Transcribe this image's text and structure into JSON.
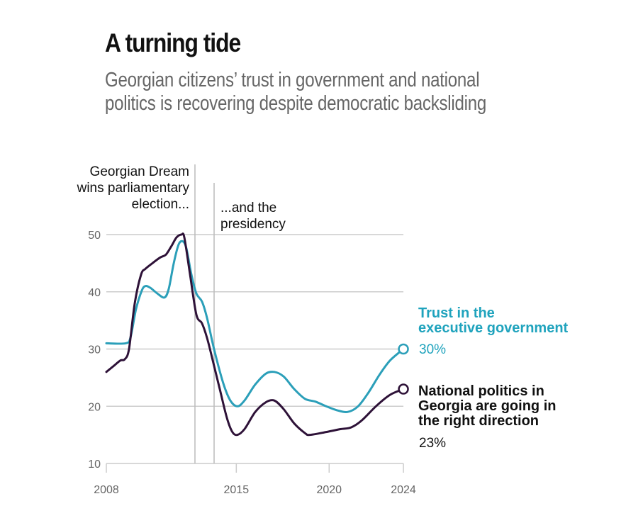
{
  "header": {
    "title": "A turning tide",
    "subtitle_line1": "Georgian citizens’ trust in government and national",
    "subtitle_line2": "politics is recovering despite democratic backsliding"
  },
  "chart_data": {
    "type": "line",
    "title": "A turning tide",
    "subtitle": "Georgian citizens’ trust in government and national politics is recovering despite democratic backsliding",
    "xlabel": "",
    "ylabel": "",
    "xlim": [
      2008,
      2024
    ],
    "ylim": [
      10,
      52
    ],
    "x_ticks": [
      2008,
      2015,
      2020,
      2024
    ],
    "x_tick_labels": [
      "2008",
      "2015",
      "2020",
      "2024"
    ],
    "y_ticks": [
      10,
      20,
      30,
      40,
      50
    ],
    "y_tick_labels": [
      "10",
      "20",
      "30",
      "40",
      "50"
    ],
    "grid": "horizontal",
    "annotations": [
      {
        "x": 2012.75,
        "lines": [
          "Georgian Dream",
          "wins parliamentary",
          "election..."
        ],
        "align": "left-of-line"
      },
      {
        "x": 2013.8,
        "lines": [
          "...and the",
          "presidency"
        ],
        "align": "right-of-line"
      }
    ],
    "series": [
      {
        "name": "Trust in the executive government",
        "label_lines": [
          "Trust in the",
          "executive government"
        ],
        "end_label": "30%",
        "color": "#2b9fb9",
        "label_color": "#1fa3bd",
        "x": [
          2008,
          2009.03,
          2009.3,
          2009.6,
          2009.91,
          2010.1,
          2010.37,
          2010.75,
          2011.13,
          2011.36,
          2011.63,
          2011.9,
          2012.13,
          2012.32,
          2012.58,
          2012.85,
          2013.15,
          2013.42,
          2013.8,
          2014.3,
          2014.68,
          2015.06,
          2015.44,
          2016.02,
          2016.59,
          2017.05,
          2017.55,
          2018.12,
          2018.7,
          2019.27,
          2019.84,
          2020.42,
          2020.99,
          2021.56,
          2022.14,
          2022.71,
          2023.28,
          2024
        ],
        "values": [
          31,
          31,
          32,
          37,
          40.2,
          41,
          40.7,
          39.7,
          39,
          40.5,
          45,
          48.3,
          48.8,
          47.5,
          43,
          39.7,
          38.3,
          35.5,
          30,
          24,
          21,
          20,
          21,
          23.8,
          25.7,
          26,
          25.2,
          23,
          21.3,
          20.8,
          20,
          19.3,
          19,
          20,
          22.5,
          25.5,
          28,
          30
        ]
      },
      {
        "name": "National politics in Georgia are going in the right direction",
        "label_lines": [
          "National politics in",
          "Georgia are going in",
          "the right direction"
        ],
        "end_label": "23%",
        "color": "#2e1238",
        "label_color": "#111111",
        "x": [
          2008,
          2008.38,
          2008.76,
          2008.99,
          2009.22,
          2009.53,
          2009.87,
          2010.1,
          2010.48,
          2010.9,
          2011.21,
          2011.51,
          2011.78,
          2012.05,
          2012.2,
          2012.51,
          2012.85,
          2013.15,
          2013.42,
          2013.73,
          2014.11,
          2014.49,
          2014.79,
          2015.06,
          2015.44,
          2016.02,
          2016.59,
          2017.05,
          2017.55,
          2018.12,
          2018.7,
          2018.96,
          2019.84,
          2020.61,
          2021.18,
          2021.75,
          2022.52,
          2023.28,
          2024
        ],
        "values": [
          26,
          27,
          28,
          28.2,
          30,
          38,
          43,
          44,
          45,
          46,
          46.5,
          48,
          49.5,
          50,
          49.5,
          43,
          36,
          34.5,
          32,
          28,
          23,
          18,
          15.5,
          15,
          16,
          19,
          20.7,
          21,
          19.5,
          17,
          15.3,
          15,
          15.5,
          16,
          16.3,
          17.5,
          20,
          22,
          23
        ]
      }
    ]
  }
}
